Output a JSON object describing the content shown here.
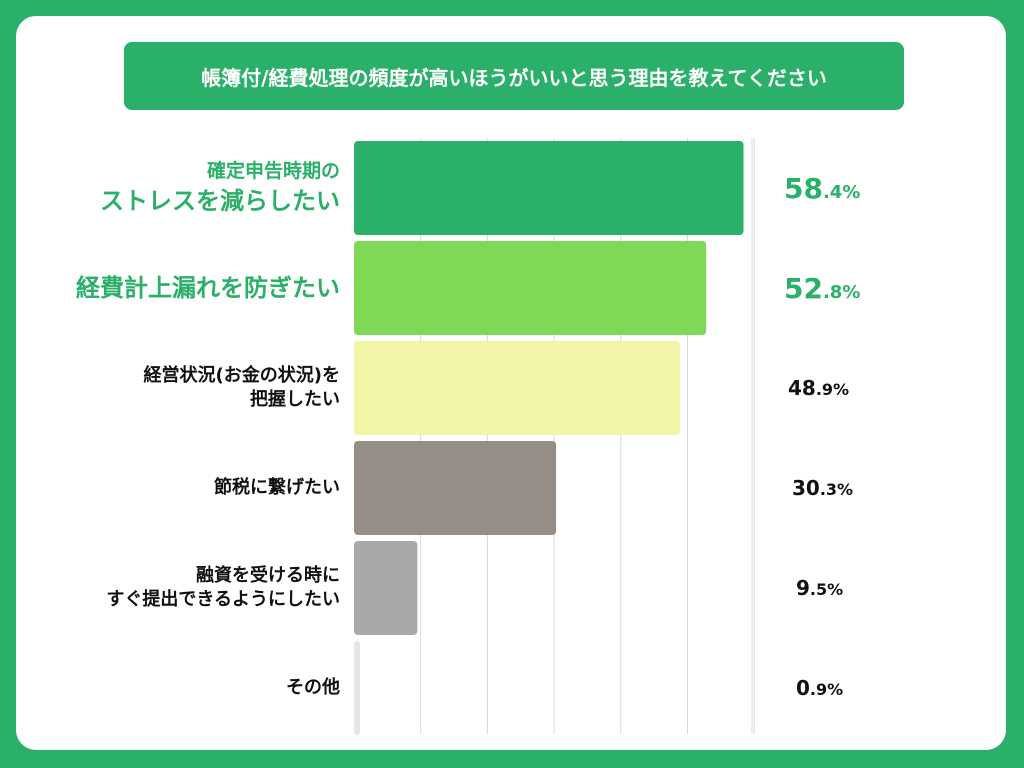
{
  "chart_data": {
    "type": "bar",
    "orientation": "horizontal",
    "title": "帳簿付/経費処理の頻度が高いほうがいいと思う理由を教えてください",
    "categories": [
      {
        "lines": [
          "確定申告時期の",
          "ストレスを減らしたい"
        ]
      },
      {
        "lines": [
          "経費計上漏れを防ぎたい"
        ]
      },
      {
        "lines": [
          "経営状況(お金の状況)を",
          "把握したい"
        ]
      },
      {
        "lines": [
          "節税に繋げたい"
        ]
      },
      {
        "lines": [
          "融資を受ける時に",
          "すぐ提出できるようにしたい"
        ]
      },
      {
        "lines": [
          "その他"
        ]
      }
    ],
    "values": [
      58.4,
      52.8,
      48.9,
      30.3,
      9.5,
      0.9
    ],
    "value_labels": [
      {
        "int": "58",
        "dec": ".4%"
      },
      {
        "int": "52",
        "dec": ".8%"
      },
      {
        "int": "48",
        "dec": ".9%"
      },
      {
        "int": "30",
        "dec": ".3%"
      },
      {
        "int": "9",
        "dec": ".5%"
      },
      {
        "int": "0",
        "dec": ".9%"
      }
    ],
    "bar_colors": [
      "#2ab068",
      "#7ed957",
      "#f2f4a8",
      "#968d86",
      "#a8a8a8",
      "#e6e6e6"
    ],
    "label_colors": [
      "#2ab068",
      "#2ab068",
      "#111111",
      "#111111",
      "#111111",
      "#111111"
    ],
    "xlim": [
      0,
      60
    ],
    "grid": true
  },
  "colors": {
    "background": "#2ab068",
    "card": "#ffffff",
    "title_bg": "#2ab068",
    "title_text": "#ffffff",
    "grid": "#d9d9d9"
  }
}
